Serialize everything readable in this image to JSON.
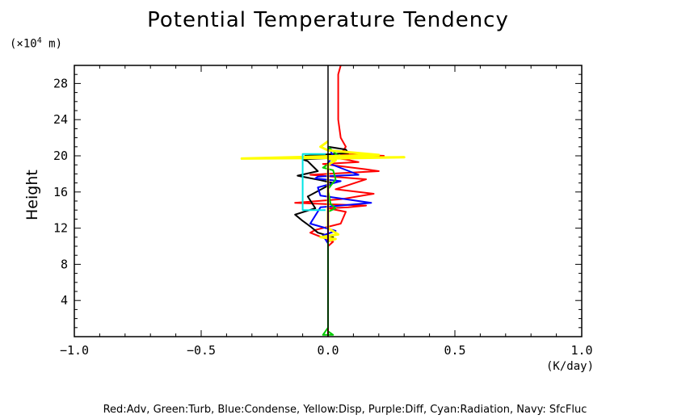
{
  "chart_data": {
    "type": "line",
    "title": "Potential Temperature Tendency",
    "ylabel": "Height",
    "y_unit_prefix": "(×10",
    "y_unit_exp": "4",
    "y_unit_suffix": " m)",
    "x_unit": "(K/day)",
    "xlim": [
      -1.0,
      1.0
    ],
    "ylim": [
      0,
      30
    ],
    "x_ticks": [
      -1.0,
      -0.5,
      0.0,
      0.5,
      1.0
    ],
    "x_tick_labels": [
      "−1.0",
      "−0.5",
      "0.0",
      "0.5",
      "1.0"
    ],
    "y_ticks": [
      4,
      8,
      12,
      16,
      20,
      24,
      28
    ],
    "y_tick_labels": [
      "4",
      "8",
      "12",
      "16",
      "20",
      "24",
      "28"
    ],
    "legend_text": "Red:Adv, Green:Turb, Blue:Condense, Yellow:Disp, Purple:Diff, Cyan:Radiation, Navy: SfcFluc",
    "legend_placement": "bottom",
    "series": [
      {
        "color": "#ff0000",
        "points": [
          [
            0.05,
            30
          ],
          [
            0.04,
            29
          ],
          [
            0.04,
            28
          ],
          [
            0.04,
            26
          ],
          [
            0.04,
            24
          ],
          [
            0.05,
            22
          ],
          [
            0.07,
            21
          ],
          [
            0.06,
            20.6
          ],
          [
            0.08,
            20.3
          ],
          [
            0.05,
            20.2
          ],
          [
            0.22,
            20.0
          ],
          [
            0.02,
            19.8
          ],
          [
            0.07,
            19.6
          ],
          [
            0.12,
            19.3
          ],
          [
            -0.02,
            19.1
          ],
          [
            0.15,
            18.5
          ],
          [
            0.2,
            18.3
          ],
          [
            -0.07,
            17.9
          ],
          [
            0.06,
            17.6
          ],
          [
            0.15,
            17.4
          ],
          [
            0.03,
            16.3
          ],
          [
            0.18,
            15.8
          ],
          [
            0.05,
            15.2
          ],
          [
            -0.13,
            14.8
          ],
          [
            0.05,
            14.6
          ],
          [
            0.15,
            14.5
          ],
          [
            0.08,
            14.3
          ],
          [
            0.0,
            14.2
          ],
          [
            0.07,
            13.8
          ],
          [
            0.05,
            12.5
          ],
          [
            -0.05,
            11.8
          ],
          [
            -0.07,
            11.5
          ],
          [
            0.02,
            10.5
          ],
          [
            0.0,
            10
          ],
          [
            0.0,
            0
          ]
        ]
      },
      {
        "color": "#000000",
        "points": [
          [
            0.0,
            21.0
          ],
          [
            0.07,
            20.7
          ],
          [
            0.08,
            20.3
          ],
          [
            -0.09,
            20.0
          ],
          [
            0.04,
            19.8
          ],
          [
            -0.1,
            19.6
          ],
          [
            -0.08,
            19.4
          ],
          [
            -0.04,
            18.3
          ],
          [
            -0.12,
            17.8
          ],
          [
            -0.03,
            17.3
          ],
          [
            0.02,
            17.0
          ],
          [
            -0.08,
            15.5
          ],
          [
            -0.05,
            14.2
          ],
          [
            -0.13,
            13.5
          ],
          [
            -0.1,
            12.8
          ],
          [
            -0.07,
            12.2
          ],
          [
            -0.04,
            11.5
          ],
          [
            0.02,
            11.0
          ],
          [
            0.02,
            10.8
          ],
          [
            0.0,
            10.5
          ],
          [
            0.0,
            10
          ]
        ]
      },
      {
        "color": "#0000ff",
        "points": [
          [
            0.0,
            21.0
          ],
          [
            0.02,
            20.0
          ],
          [
            0.0,
            19.2
          ],
          [
            0.12,
            17.9
          ],
          [
            -0.04,
            17.7
          ],
          [
            -0.05,
            17.5
          ],
          [
            0.05,
            17.2
          ],
          [
            -0.04,
            16.5
          ],
          [
            -0.03,
            15.6
          ],
          [
            0.17,
            14.8
          ],
          [
            -0.03,
            14.3
          ],
          [
            -0.07,
            12.5
          ],
          [
            0.03,
            11.7
          ],
          [
            -0.02,
            11.2
          ],
          [
            0.0,
            10.3
          ],
          [
            0.0,
            10
          ]
        ]
      },
      {
        "color": "#00cc00",
        "points": [
          [
            0.0,
            21
          ],
          [
            0.04,
            20.0
          ],
          [
            0.0,
            19.8
          ],
          [
            0.03,
            19.6
          ],
          [
            -0.02,
            18.7
          ],
          [
            0.02,
            18.4
          ],
          [
            0.03,
            17.4
          ],
          [
            0.0,
            16.3
          ],
          [
            0.01,
            14.7
          ],
          [
            0.03,
            14.2
          ],
          [
            0.0,
            13.8
          ],
          [
            0.0,
            11.3
          ],
          [
            0.0,
            1.0
          ],
          [
            -0.02,
            0.2
          ],
          [
            0.02,
            0.2
          ],
          [
            0.0,
            0.6
          ]
        ]
      },
      {
        "color": "#ffff00",
        "points": [
          [
            0.0,
            21.6
          ],
          [
            -0.03,
            21.0
          ],
          [
            0.0,
            20.6
          ],
          [
            0.2,
            20.1
          ],
          [
            -0.34,
            19.7
          ],
          [
            0.3,
            19.85
          ],
          [
            0.0,
            19.7
          ],
          [
            0.03,
            19.5
          ],
          [
            0.0,
            19.0
          ],
          [
            0.0,
            12.0
          ],
          [
            0.04,
            11.3
          ],
          [
            -0.03,
            11.0
          ],
          [
            0.03,
            10.8
          ],
          [
            0.0,
            10.6
          ]
        ]
      },
      {
        "color": "#00e5e5",
        "points": [
          [
            -0.01,
            20.2
          ],
          [
            -0.1,
            20.2
          ],
          [
            -0.1,
            14.0
          ],
          [
            -0.01,
            14.0
          ]
        ]
      },
      {
        "color": "#8b008b",
        "points": [
          [
            0.0,
            18.5
          ],
          [
            0.0,
            10.5
          ]
        ]
      }
    ]
  }
}
